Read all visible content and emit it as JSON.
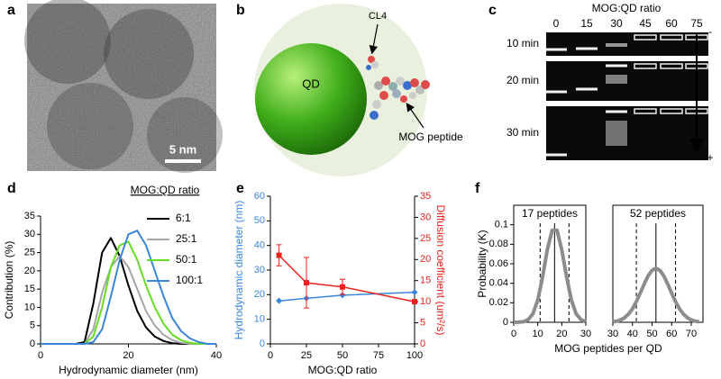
{
  "panels": {
    "a": {
      "label": "a",
      "scale_bar": "5 nm"
    },
    "b": {
      "label": "b",
      "core": "QD",
      "linker": "CL4",
      "peptide": "MOG peptide"
    },
    "c": {
      "label": "c",
      "title": "MOG:QD ratio",
      "lanes": [
        "0",
        "15",
        "30",
        "45",
        "60",
        "75"
      ],
      "times": [
        "10 min",
        "20 min",
        "30 min"
      ],
      "minus": "-",
      "plus": "+"
    }
  },
  "chart_data": [
    {
      "type": "line",
      "panel": "d",
      "xlabel": "Hydrodynamic diameter (nm)",
      "ylabel": "Contribution (%)",
      "legend_title": "MOG:QD ratio",
      "x": [
        0,
        2,
        4,
        6,
        8,
        10,
        12,
        14,
        16,
        18,
        20,
        22,
        24,
        26,
        28,
        30,
        32,
        34,
        36,
        38,
        40
      ],
      "series": [
        {
          "name": "6:1",
          "color": "#000000",
          "values": [
            0,
            0,
            0,
            0,
            0,
            0.5,
            11,
            25,
            29,
            24,
            16,
            9,
            4.5,
            2,
            0.8,
            0.2,
            0,
            0,
            0,
            0,
            0
          ]
        },
        {
          "name": "25:1",
          "color": "#a6a6a6",
          "values": [
            0,
            0,
            0,
            0,
            0,
            0,
            4,
            14,
            21,
            24,
            21,
            15,
            9,
            5,
            2.5,
            1,
            0.3,
            0,
            0,
            0,
            0
          ]
        },
        {
          "name": "50:1",
          "color": "#66dd22",
          "values": [
            0,
            0,
            0,
            0,
            0,
            0,
            2,
            10,
            21,
            27,
            28,
            23,
            16,
            10,
            5.5,
            2.5,
            1,
            0.3,
            0,
            0,
            0
          ]
        },
        {
          "name": "100:1",
          "color": "#3a86d8",
          "values": [
            0,
            0,
            0,
            0,
            0,
            0,
            0.5,
            4,
            13,
            23,
            30,
            31,
            27,
            20,
            13,
            7,
            3.5,
            1.5,
            0.5,
            0,
            0
          ]
        }
      ],
      "xlim": [
        0,
        40
      ],
      "xticks": [
        0,
        20,
        40
      ],
      "ylim": [
        0,
        35
      ],
      "yticks": [
        0,
        5,
        10,
        15,
        20,
        25,
        30,
        35
      ]
    },
    {
      "type": "line",
      "panel": "e",
      "xlabel": "MOG:QD ratio",
      "ylabel": "Hydrodynamic diameter (nm)",
      "y2label": "Diffusion coefficient (um²/s)",
      "x": [
        6,
        25,
        50,
        100
      ],
      "series": [
        {
          "color": "#3a86d8",
          "marker": "diamond",
          "values": [
            17.5,
            18.5,
            19.8,
            21
          ]
        },
        {
          "color": "#e8221c",
          "marker": "square",
          "axis": "y2",
          "values": [
            21,
            14.5,
            13.5,
            10
          ],
          "errors": [
            2.5,
            6,
            1.8,
            0
          ]
        }
      ],
      "xlim": [
        0,
        100
      ],
      "xticks": [
        0,
        25,
        50,
        75,
        100
      ],
      "ylim": [
        0,
        60
      ],
      "yticks": [
        0,
        10,
        20,
        30,
        40,
        50,
        60
      ],
      "y2lim": [
        0,
        35
      ],
      "y2ticks": [
        0,
        5,
        10,
        15,
        20,
        25,
        30,
        35
      ]
    },
    {
      "type": "line",
      "panel": "f",
      "title": "17 peptides",
      "xlabel": "MOG peptides per QD",
      "ylabel": "Probability (K)",
      "color": "#8c8c8c",
      "x": [
        0,
        2,
        4,
        6,
        8,
        10,
        12,
        14,
        16,
        18,
        20,
        22,
        24,
        26,
        28,
        30
      ],
      "values": [
        0,
        0.0001,
        0.0006,
        0.0027,
        0.0087,
        0.0227,
        0.0463,
        0.0744,
        0.0944,
        0.0944,
        0.0744,
        0.0463,
        0.0227,
        0.0087,
        0.0027,
        0.0006
      ],
      "mean": 17,
      "range": [
        11,
        23
      ],
      "xlim": [
        0,
        30
      ],
      "xticks": [
        0,
        10,
        20,
        30
      ],
      "ylim": [
        0,
        0.12
      ],
      "yticks": [
        0,
        0.02,
        0.04,
        0.06,
        0.08,
        0.1
      ]
    },
    {
      "type": "line",
      "title": "52 peptides",
      "color": "#8c8c8c",
      "x": [
        30,
        32,
        34,
        36,
        38,
        40,
        42,
        44,
        46,
        48,
        50,
        52,
        54,
        56,
        58,
        60,
        62,
        64,
        66,
        68,
        70,
        72,
        74
      ],
      "values": [
        0.0005,
        0.0012,
        0.0024,
        0.0047,
        0.0084,
        0.0138,
        0.0211,
        0.0299,
        0.0392,
        0.0475,
        0.0533,
        0.0554,
        0.0533,
        0.0475,
        0.0392,
        0.0299,
        0.0211,
        0.0138,
        0.0084,
        0.0047,
        0.0024,
        0.0012,
        0.0005
      ],
      "mean": 52,
      "range": [
        42,
        62
      ],
      "xlim": [
        30,
        76
      ],
      "xticks": [
        30,
        40,
        50,
        60,
        70
      ],
      "ylim": [
        0,
        0.12
      ]
    }
  ]
}
